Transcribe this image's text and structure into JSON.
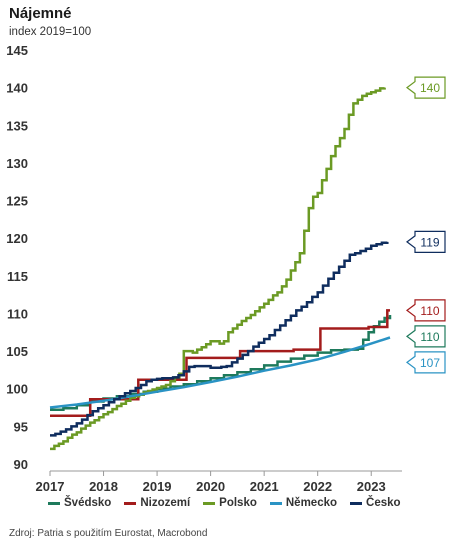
{
  "header": {
    "title": "Nájemné",
    "subtitle": "index 2019=100"
  },
  "footer": {
    "source": "Zdroj: Patria s použitím Eurostat, Macrobond"
  },
  "chart_data": {
    "type": "line",
    "ylim": [
      90,
      145
    ],
    "xlim": [
      2017.0,
      2023.5
    ],
    "y_ticks": [
      90,
      95,
      100,
      105,
      110,
      115,
      120,
      125,
      130,
      135,
      140,
      145
    ],
    "x_ticks": [
      2017,
      2018,
      2019,
      2020,
      2021,
      2022,
      2023
    ],
    "grid": false,
    "legend_position": "bottom",
    "series": [
      {
        "name": "Švédsko",
        "color": "#1e7a5c",
        "step": true,
        "end_label": "110",
        "points": [
          [
            2017.0,
            97.2
          ],
          [
            2017.25,
            97.4
          ],
          [
            2017.5,
            97.8
          ],
          [
            2017.75,
            98.3
          ],
          [
            2018.0,
            98.7
          ],
          [
            2018.25,
            99.0
          ],
          [
            2018.5,
            99.3
          ],
          [
            2018.75,
            99.6
          ],
          [
            2019.0,
            100.0
          ],
          [
            2019.25,
            100.3
          ],
          [
            2019.5,
            100.6
          ],
          [
            2019.75,
            101.0
          ],
          [
            2020.0,
            101.4
          ],
          [
            2020.25,
            101.8
          ],
          [
            2020.5,
            102.2
          ],
          [
            2020.75,
            102.6
          ],
          [
            2021.0,
            103.1
          ],
          [
            2021.25,
            103.6
          ],
          [
            2021.5,
            104.0
          ],
          [
            2021.75,
            104.4
          ],
          [
            2022.0,
            104.8
          ],
          [
            2022.25,
            105.1
          ],
          [
            2022.5,
            105.2
          ],
          [
            2022.75,
            105.3
          ],
          [
            2022.85,
            106.5
          ],
          [
            2022.95,
            107.5
          ],
          [
            2023.05,
            108.3
          ],
          [
            2023.15,
            108.9
          ],
          [
            2023.25,
            109.4
          ],
          [
            2023.35,
            109.8
          ]
        ]
      },
      {
        "name": "Nizozemí",
        "color": "#a31c1c",
        "step": true,
        "end_label": "110",
        "points": [
          [
            2017.0,
            96.4
          ],
          [
            2017.7,
            96.4
          ],
          [
            2017.75,
            98.6
          ],
          [
            2018.6,
            98.6
          ],
          [
            2018.65,
            101.2
          ],
          [
            2019.5,
            101.2
          ],
          [
            2019.55,
            104.1
          ],
          [
            2020.5,
            104.1
          ],
          [
            2020.55,
            105.0
          ],
          [
            2021.5,
            105.0
          ],
          [
            2021.55,
            105.2
          ],
          [
            2022.0,
            105.2
          ],
          [
            2022.05,
            108.0
          ],
          [
            2022.9,
            108.0
          ],
          [
            2022.95,
            108.2
          ],
          [
            2023.25,
            108.2
          ],
          [
            2023.3,
            110.4
          ],
          [
            2023.35,
            110.4
          ]
        ]
      },
      {
        "name": "Polsko",
        "color": "#6b9a24",
        "step": true,
        "end_label": "140",
        "points": [
          [
            2017.0,
            92.0
          ],
          [
            2017.083,
            92.4
          ],
          [
            2017.167,
            92.7
          ],
          [
            2017.25,
            93.0
          ],
          [
            2017.333,
            93.5
          ],
          [
            2017.417,
            93.9
          ],
          [
            2017.5,
            94.2
          ],
          [
            2017.583,
            94.7
          ],
          [
            2017.667,
            95.1
          ],
          [
            2017.75,
            95.5
          ],
          [
            2017.833,
            95.8
          ],
          [
            2017.917,
            96.2
          ],
          [
            2018.0,
            96.6
          ],
          [
            2018.083,
            96.9
          ],
          [
            2018.167,
            97.3
          ],
          [
            2018.25,
            97.7
          ],
          [
            2018.333,
            98.0
          ],
          [
            2018.417,
            98.4
          ],
          [
            2018.5,
            98.8
          ],
          [
            2018.583,
            99.0
          ],
          [
            2018.667,
            99.2
          ],
          [
            2018.75,
            99.5
          ],
          [
            2018.833,
            99.7
          ],
          [
            2018.917,
            99.9
          ],
          [
            2019.0,
            100.1
          ],
          [
            2019.083,
            100.3
          ],
          [
            2019.167,
            100.5
          ],
          [
            2019.25,
            101.0
          ],
          [
            2019.333,
            101.5
          ],
          [
            2019.417,
            102.0
          ],
          [
            2019.5,
            105.0
          ],
          [
            2019.583,
            105.0
          ],
          [
            2019.667,
            104.8
          ],
          [
            2019.75,
            105.2
          ],
          [
            2019.833,
            105.5
          ],
          [
            2019.917,
            105.9
          ],
          [
            2020.0,
            106.3
          ],
          [
            2020.083,
            106.3
          ],
          [
            2020.167,
            106.0
          ],
          [
            2020.25,
            106.3
          ],
          [
            2020.333,
            107.5
          ],
          [
            2020.417,
            108.0
          ],
          [
            2020.5,
            108.5
          ],
          [
            2020.583,
            109.0
          ],
          [
            2020.667,
            109.4
          ],
          [
            2020.75,
            109.8
          ],
          [
            2020.833,
            110.3
          ],
          [
            2020.917,
            110.8
          ],
          [
            2021.0,
            111.3
          ],
          [
            2021.083,
            111.8
          ],
          [
            2021.167,
            112.4
          ],
          [
            2021.25,
            112.8
          ],
          [
            2021.333,
            113.6
          ],
          [
            2021.417,
            114.5
          ],
          [
            2021.5,
            115.7
          ],
          [
            2021.583,
            116.8
          ],
          [
            2021.667,
            118.0
          ],
          [
            2021.75,
            121.0
          ],
          [
            2021.833,
            124.0
          ],
          [
            2021.917,
            125.5
          ],
          [
            2022.0,
            126.0
          ],
          [
            2022.083,
            127.7
          ],
          [
            2022.167,
            129.2
          ],
          [
            2022.25,
            130.9
          ],
          [
            2022.333,
            132.2
          ],
          [
            2022.417,
            133.3
          ],
          [
            2022.5,
            134.5
          ],
          [
            2022.583,
            136.4
          ],
          [
            2022.667,
            137.9
          ],
          [
            2022.75,
            138.4
          ],
          [
            2022.833,
            138.9
          ],
          [
            2022.917,
            139.2
          ],
          [
            2023.0,
            139.4
          ],
          [
            2023.083,
            139.6
          ],
          [
            2023.167,
            139.9
          ],
          [
            2023.25,
            140.0
          ]
        ]
      },
      {
        "name": "Německo",
        "color": "#2a93c4",
        "step": false,
        "end_label": "107",
        "points": [
          [
            2017.0,
            97.5
          ],
          [
            2017.5,
            97.9
          ],
          [
            2018.0,
            98.4
          ],
          [
            2018.5,
            99.0
          ],
          [
            2019.0,
            99.6
          ],
          [
            2019.5,
            100.2
          ],
          [
            2020.0,
            100.9
          ],
          [
            2020.5,
            101.6
          ],
          [
            2021.0,
            102.4
          ],
          [
            2021.5,
            103.1
          ],
          [
            2022.0,
            103.9
          ],
          [
            2022.5,
            104.9
          ],
          [
            2023.0,
            106.0
          ],
          [
            2023.35,
            106.8
          ]
        ]
      },
      {
        "name": "Česko",
        "color": "#0f2d5e",
        "step": true,
        "end_label": "119",
        "points": [
          [
            2017.0,
            93.8
          ],
          [
            2017.1,
            94.0
          ],
          [
            2017.2,
            94.3
          ],
          [
            2017.3,
            94.6
          ],
          [
            2017.4,
            95.0
          ],
          [
            2017.5,
            95.4
          ],
          [
            2017.6,
            95.9
          ],
          [
            2017.7,
            96.5
          ],
          [
            2017.8,
            97.0
          ],
          [
            2017.9,
            97.4
          ],
          [
            2018.0,
            97.8
          ],
          [
            2018.1,
            98.2
          ],
          [
            2018.2,
            98.6
          ],
          [
            2018.3,
            99.0
          ],
          [
            2018.4,
            99.4
          ],
          [
            2018.5,
            99.7
          ],
          [
            2018.6,
            100.1
          ],
          [
            2018.7,
            100.5
          ],
          [
            2018.8,
            101.0
          ],
          [
            2018.9,
            101.2
          ],
          [
            2019.0,
            101.3
          ],
          [
            2019.1,
            101.4
          ],
          [
            2019.2,
            101.4
          ],
          [
            2019.3,
            101.5
          ],
          [
            2019.4,
            101.8
          ],
          [
            2019.5,
            102.3
          ],
          [
            2019.6,
            102.9
          ],
          [
            2019.7,
            103.0
          ],
          [
            2019.8,
            103.0
          ],
          [
            2019.9,
            103.0
          ],
          [
            2020.0,
            102.8
          ],
          [
            2020.1,
            102.8
          ],
          [
            2020.2,
            102.9
          ],
          [
            2020.3,
            103.0
          ],
          [
            2020.4,
            103.5
          ],
          [
            2020.5,
            104.0
          ],
          [
            2020.6,
            104.5
          ],
          [
            2020.7,
            105.0
          ],
          [
            2020.8,
            105.6
          ],
          [
            2020.9,
            106.1
          ],
          [
            2021.0,
            106.6
          ],
          [
            2021.1,
            107.1
          ],
          [
            2021.2,
            107.8
          ],
          [
            2021.3,
            108.4
          ],
          [
            2021.4,
            109.1
          ],
          [
            2021.5,
            109.7
          ],
          [
            2021.6,
            110.4
          ],
          [
            2021.7,
            110.9
          ],
          [
            2021.8,
            111.5
          ],
          [
            2021.9,
            112.2
          ],
          [
            2022.0,
            112.8
          ],
          [
            2022.1,
            113.7
          ],
          [
            2022.2,
            114.6
          ],
          [
            2022.3,
            115.4
          ],
          [
            2022.4,
            116.2
          ],
          [
            2022.5,
            117.0
          ],
          [
            2022.6,
            117.8
          ],
          [
            2022.7,
            118.0
          ],
          [
            2022.8,
            118.3
          ],
          [
            2022.9,
            118.6
          ],
          [
            2023.0,
            119.0
          ],
          [
            2023.1,
            119.2
          ],
          [
            2023.2,
            119.4
          ],
          [
            2023.3,
            119.5
          ]
        ]
      }
    ]
  }
}
